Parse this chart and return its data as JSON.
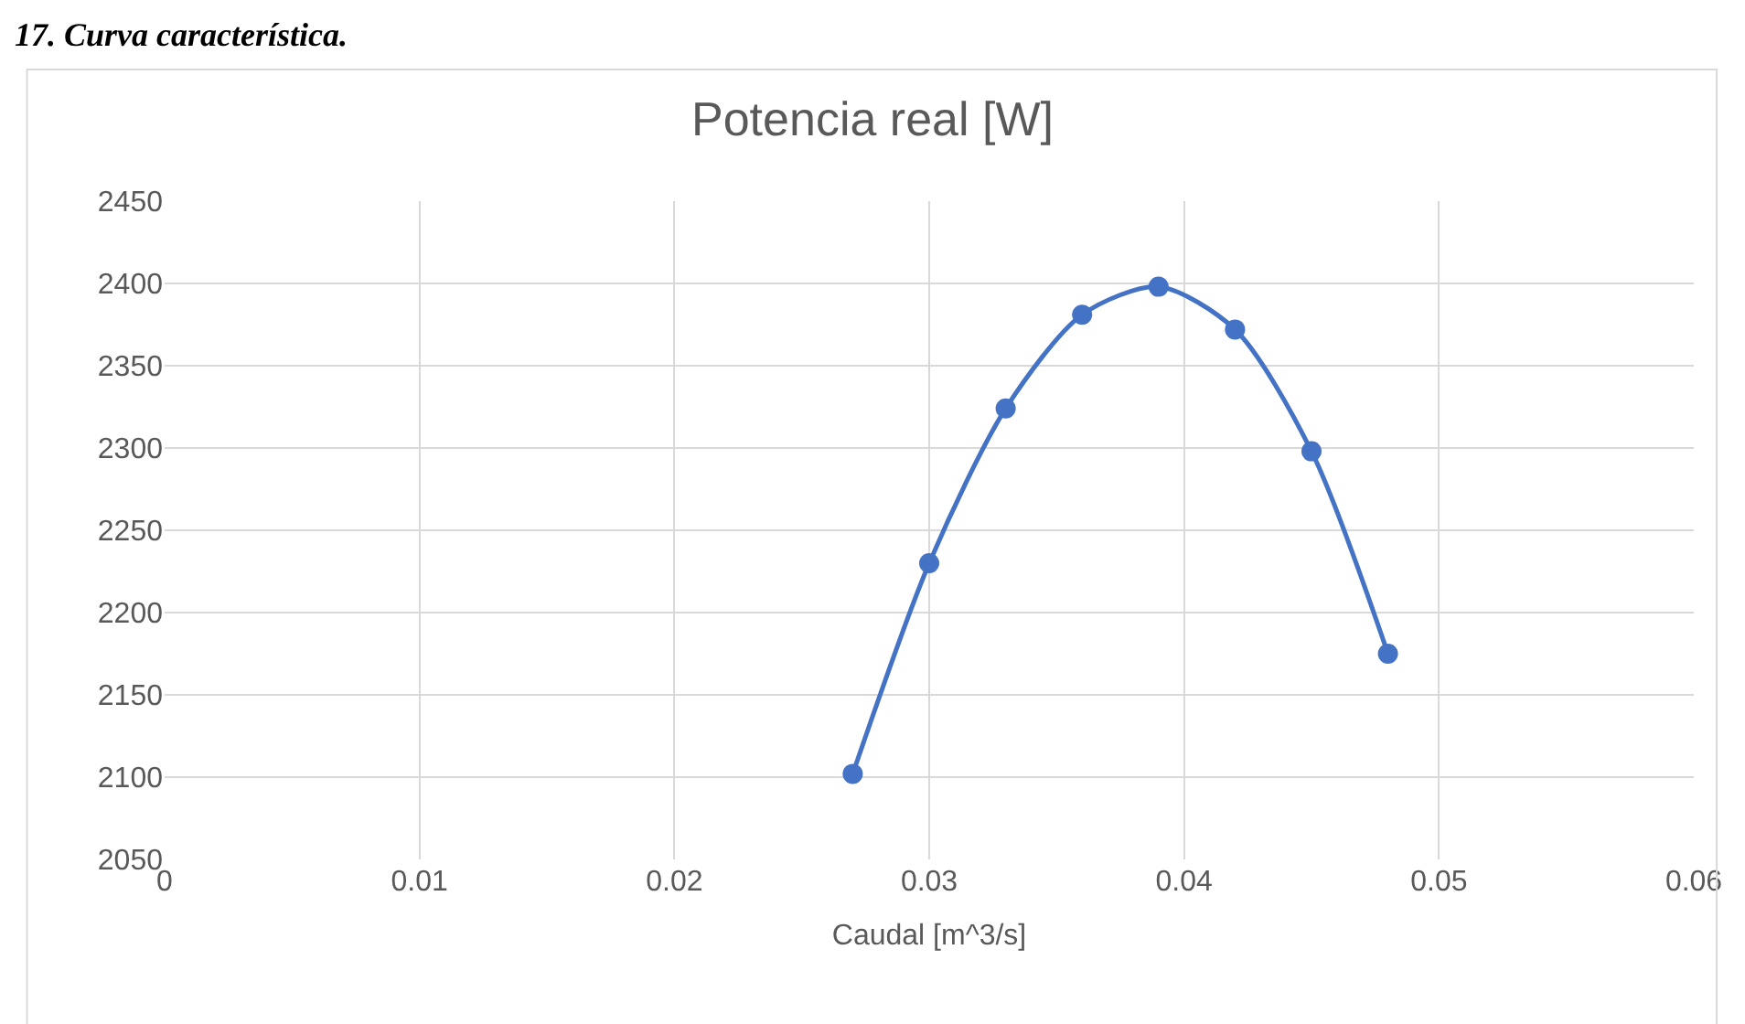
{
  "chart_data": {
    "type": "line",
    "title": "Potencia real [W]",
    "xlabel": "Caudal [m^3/s]",
    "annotations": [
      "17. Curva característica."
    ],
    "x": [
      0.027,
      0.03,
      0.033,
      0.036,
      0.039,
      0.042,
      0.045,
      0.048
    ],
    "series": [
      {
        "color": "#4472c4",
        "values": [
          2102,
          2230,
          2324,
          2381,
          2398,
          2372,
          2298,
          2175
        ]
      }
    ],
    "xlim": [
      0,
      0.06
    ],
    "xticks": [
      0,
      0.01,
      0.02,
      0.03,
      0.04,
      0.05,
      0.06
    ],
    "ylim": [
      2050,
      2450
    ],
    "yticks": [
      2050,
      2100,
      2150,
      2200,
      2250,
      2300,
      2350,
      2400,
      2450
    ],
    "grid": true,
    "marker": "circle",
    "line_style": "solid"
  }
}
